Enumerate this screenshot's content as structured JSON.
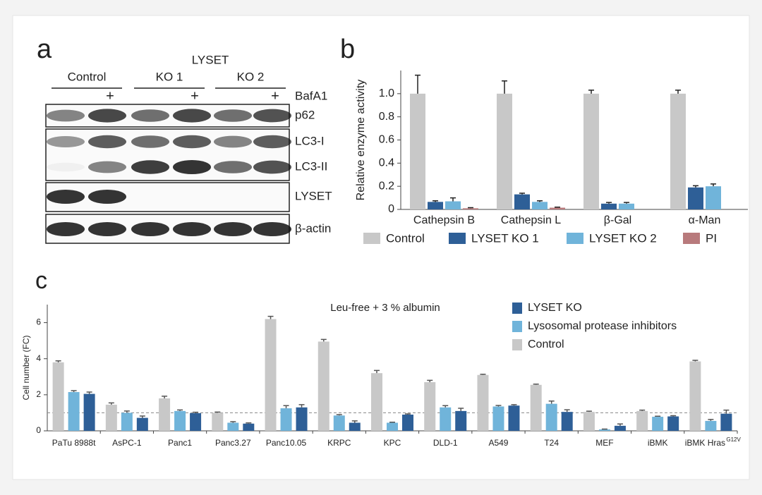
{
  "panel_labels": [
    "a",
    "b",
    "c"
  ],
  "blot": {
    "group_header": "LYSET",
    "groups": [
      "Control",
      "KO 1",
      "KO 2"
    ],
    "treatment": "BafA1",
    "plus_marks": [
      "+",
      "+",
      "+"
    ],
    "bands": [
      "p62",
      "LC3-I",
      "LC3-II",
      "LYSET",
      "β-actin"
    ]
  },
  "chart_data": [
    {
      "type": "bar",
      "ylabel": "Relative enzyme activity",
      "categories": [
        "Cathepsin B",
        "Cathepsin L",
        "β-Gal",
        "α-Man"
      ],
      "series": [
        {
          "name": "Control",
          "color": "#c8c8c8",
          "values": [
            1.0,
            1.0,
            1.0,
            1.0
          ],
          "errors": [
            0.16,
            0.11,
            0.03,
            0.03
          ]
        },
        {
          "name": "LYSET KO 1",
          "color": "#2e5f97",
          "values": [
            0.065,
            0.13,
            0.05,
            0.19
          ],
          "errors": [
            0.01,
            0.01,
            0.01,
            0.015
          ]
        },
        {
          "name": "LYSET KO 2",
          "color": "#70b4da",
          "values": [
            0.07,
            0.065,
            0.05,
            0.2
          ],
          "errors": [
            0.03,
            0.01,
            0.01,
            0.02
          ]
        },
        {
          "name": "PI",
          "color": "#b87a7c",
          "values": [
            0.01,
            0.015,
            null,
            null
          ],
          "errors": [
            0.005,
            0.005,
            null,
            null
          ]
        }
      ],
      "ylim": [
        0,
        1.2
      ],
      "yticks": [
        0,
        0.2,
        0.4,
        0.6,
        0.8,
        {
          "value": 1,
          "label": "1.0"
        }
      ],
      "legend": "bottom"
    },
    {
      "type": "bar",
      "ylabel": "Cell number (FC)",
      "annotation": "Leu-free + 3 % albumin",
      "categories": [
        "PaTu 8988t",
        "AsPC-1",
        "Panc1",
        "Panc3.27",
        "Panc10.05",
        "KRPC",
        "KPC",
        "DLD-1",
        "A549",
        "T24",
        "MEF",
        "iBMK",
        "iBMK Hras"
      ],
      "last_category_superscript": "G12V",
      "series": [
        {
          "name": "LYSET KO",
          "color": "#2e5f97",
          "values": [
            2.05,
            0.72,
            0.98,
            0.4,
            1.3,
            0.45,
            0.9,
            1.1,
            1.4,
            1.05,
            0.28,
            0.8,
            0.95
          ],
          "errors": [
            0.1,
            0.1,
            0.05,
            0.04,
            0.15,
            0.1,
            0.04,
            0.15,
            0.05,
            0.12,
            0.1,
            0.04,
            0.2
          ]
        },
        {
          "name": "Lysosomal protease inhibitors",
          "color": "#70b4da",
          "values": [
            2.15,
            1.0,
            1.1,
            0.45,
            1.25,
            0.85,
            0.45,
            1.3,
            1.35,
            1.5,
            0.08,
            0.78,
            0.55
          ],
          "errors": [
            0.08,
            0.1,
            0.06,
            0.06,
            0.15,
            0.05,
            0.03,
            0.1,
            0.06,
            0.15,
            0.02,
            0.03,
            0.08
          ]
        },
        {
          "name": "Control",
          "color": "#c8c8c8",
          "values": [
            3.8,
            1.45,
            1.8,
            1.0,
            6.2,
            4.95,
            3.2,
            2.7,
            3.1,
            2.55,
            1.05,
            1.1,
            3.85
          ],
          "errors": [
            0.08,
            0.1,
            0.12,
            0.04,
            0.15,
            0.12,
            0.15,
            0.1,
            0.04,
            0.04,
            0.04,
            0.05,
            0.06
          ]
        }
      ],
      "ylim": [
        0,
        7
      ],
      "yticks": [
        0,
        2,
        4,
        6
      ],
      "reference_line": 1,
      "legend": "upper right"
    }
  ]
}
